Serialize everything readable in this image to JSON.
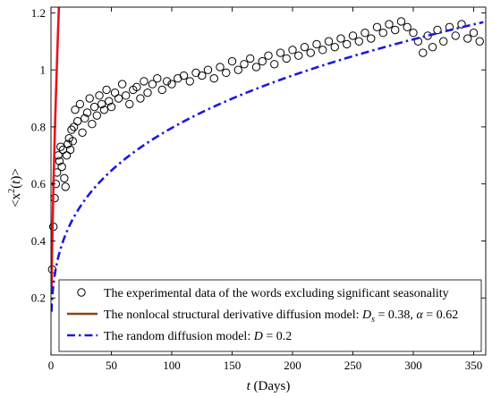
{
  "chart_data": {
    "type": "line",
    "xlabel_var": "t",
    "xlabel_unit": " (Days)",
    "ylabel_left": "<x",
    "ylabel_sup": "2",
    "ylabel_mid": "(",
    "ylabel_var": "t",
    "ylabel_right": ")>",
    "xlim": [
      0,
      360
    ],
    "ylim": [
      0,
      1.22
    ],
    "xticks": [
      0,
      50,
      100,
      150,
      200,
      250,
      300,
      350
    ],
    "xtick_labels": [
      "0",
      "50",
      "100",
      "150",
      "200",
      "250",
      "300",
      "350"
    ],
    "yticks": [
      0.2,
      0.4,
      0.6,
      0.8,
      1.0,
      1.2
    ],
    "ytick_labels": [
      "0.2",
      "0.4",
      "0.6",
      "0.8",
      "1",
      "1.2"
    ],
    "grid": false,
    "legend_position": "bottom-left",
    "series": [
      {
        "kind": "scatter",
        "marker": "open-circle",
        "color": "#000000",
        "x": [
          1,
          2,
          3,
          4,
          5,
          6,
          7,
          8,
          9,
          10,
          11,
          12,
          13,
          14,
          15,
          16,
          17,
          18,
          19,
          20,
          22,
          24,
          26,
          28,
          30,
          32,
          34,
          36,
          38,
          40,
          42,
          44,
          46,
          48,
          50,
          53,
          56,
          59,
          62,
          65,
          68,
          71,
          74,
          77,
          80,
          84,
          88,
          92,
          96,
          100,
          105,
          110,
          115,
          120,
          125,
          130,
          135,
          140,
          145,
          150,
          155,
          160,
          165,
          170,
          175,
          180,
          185,
          190,
          195,
          200,
          205,
          210,
          215,
          220,
          225,
          230,
          235,
          240,
          245,
          250,
          255,
          260,
          265,
          270,
          275,
          280,
          285,
          290,
          295,
          300,
          304,
          308,
          312,
          316,
          320,
          325,
          330,
          335,
          340,
          345,
          350,
          355
        ],
        "y": [
          0.3,
          0.45,
          0.55,
          0.6,
          0.64,
          0.7,
          0.68,
          0.73,
          0.66,
          0.72,
          0.62,
          0.59,
          0.7,
          0.74,
          0.76,
          0.72,
          0.79,
          0.75,
          0.8,
          0.86,
          0.82,
          0.88,
          0.78,
          0.83,
          0.85,
          0.9,
          0.81,
          0.87,
          0.84,
          0.91,
          0.88,
          0.86,
          0.93,
          0.89,
          0.87,
          0.92,
          0.9,
          0.95,
          0.91,
          0.88,
          0.93,
          0.94,
          0.9,
          0.96,
          0.92,
          0.95,
          0.97,
          0.93,
          0.96,
          0.95,
          0.97,
          0.98,
          0.96,
          0.99,
          0.98,
          1.0,
          0.97,
          1.01,
          0.99,
          1.03,
          1.0,
          1.02,
          1.04,
          1.01,
          1.03,
          1.05,
          1.02,
          1.06,
          1.04,
          1.07,
          1.05,
          1.08,
          1.06,
          1.09,
          1.07,
          1.1,
          1.08,
          1.11,
          1.09,
          1.12,
          1.1,
          1.13,
          1.11,
          1.15,
          1.13,
          1.16,
          1.14,
          1.17,
          1.15,
          1.13,
          1.1,
          1.06,
          1.12,
          1.08,
          1.14,
          1.1,
          1.15,
          1.12,
          1.16,
          1.11,
          1.13,
          1.1
        ]
      },
      {
        "kind": "line",
        "style": "solid",
        "color": "#e8141c",
        "model": {
          "a": 0.38,
          "b": 0.62
        },
        "x_range": [
          0.4,
          358
        ]
      },
      {
        "kind": "line",
        "style": "dash-dot",
        "color": "#1a1adc",
        "model": {
          "a": 0.2,
          "b": 0.3
        },
        "x_range": [
          0.4,
          358
        ]
      }
    ],
    "legend": [
      {
        "marker": "circle",
        "color": "#000000",
        "text": "The experimental data of the words excluding significant seasonality"
      },
      {
        "marker": "line-solid",
        "color": "#8b4513",
        "text_main": "The nonlocal structural derivative diffusion model: ",
        "var1": "D",
        "var1_sub": "s",
        "eq1": " = 0.38, ",
        "var2": "α",
        "eq2": " = 0.62"
      },
      {
        "marker": "line-dashdot",
        "color": "#1a1adc",
        "text_main": "The random diffusion model: ",
        "var1": "D",
        "eq1": " = 0.2"
      }
    ]
  }
}
